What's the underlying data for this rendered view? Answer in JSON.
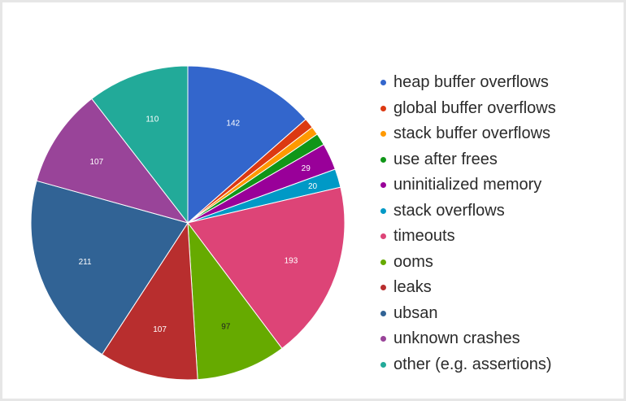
{
  "chart_data": {
    "type": "pie",
    "title": "",
    "legend_position": "right",
    "slices": [
      {
        "label": "heap buffer overflows",
        "value": 142,
        "color": "#3366cc",
        "show_value": true
      },
      {
        "label": "global buffer overflows",
        "value": 11,
        "color": "#dc3912",
        "show_value": false
      },
      {
        "label": "stack buffer overflows",
        "value": 9,
        "color": "#ff9900",
        "show_value": false
      },
      {
        "label": "use after frees",
        "value": 13,
        "color": "#109618",
        "show_value": false
      },
      {
        "label": "uninitialized memory",
        "value": 29,
        "color": "#990099",
        "show_value": true
      },
      {
        "label": "stack overflows",
        "value": 20,
        "color": "#0099c6",
        "show_value": true
      },
      {
        "label": "timeouts",
        "value": 193,
        "color": "#dd4477",
        "show_value": true
      },
      {
        "label": "ooms",
        "value": 97,
        "color": "#66aa00",
        "show_value": true
      },
      {
        "label": "leaks",
        "value": 107,
        "color": "#b82e2e",
        "show_value": true
      },
      {
        "label": "ubsan",
        "value": 211,
        "color": "#316395",
        "show_value": true
      },
      {
        "label": "unknown crashes",
        "value": 107,
        "color": "#994499",
        "show_value": true
      },
      {
        "label": "other (e.g. assertions)",
        "value": 110,
        "color": "#22aa99",
        "show_value": true
      }
    ]
  }
}
